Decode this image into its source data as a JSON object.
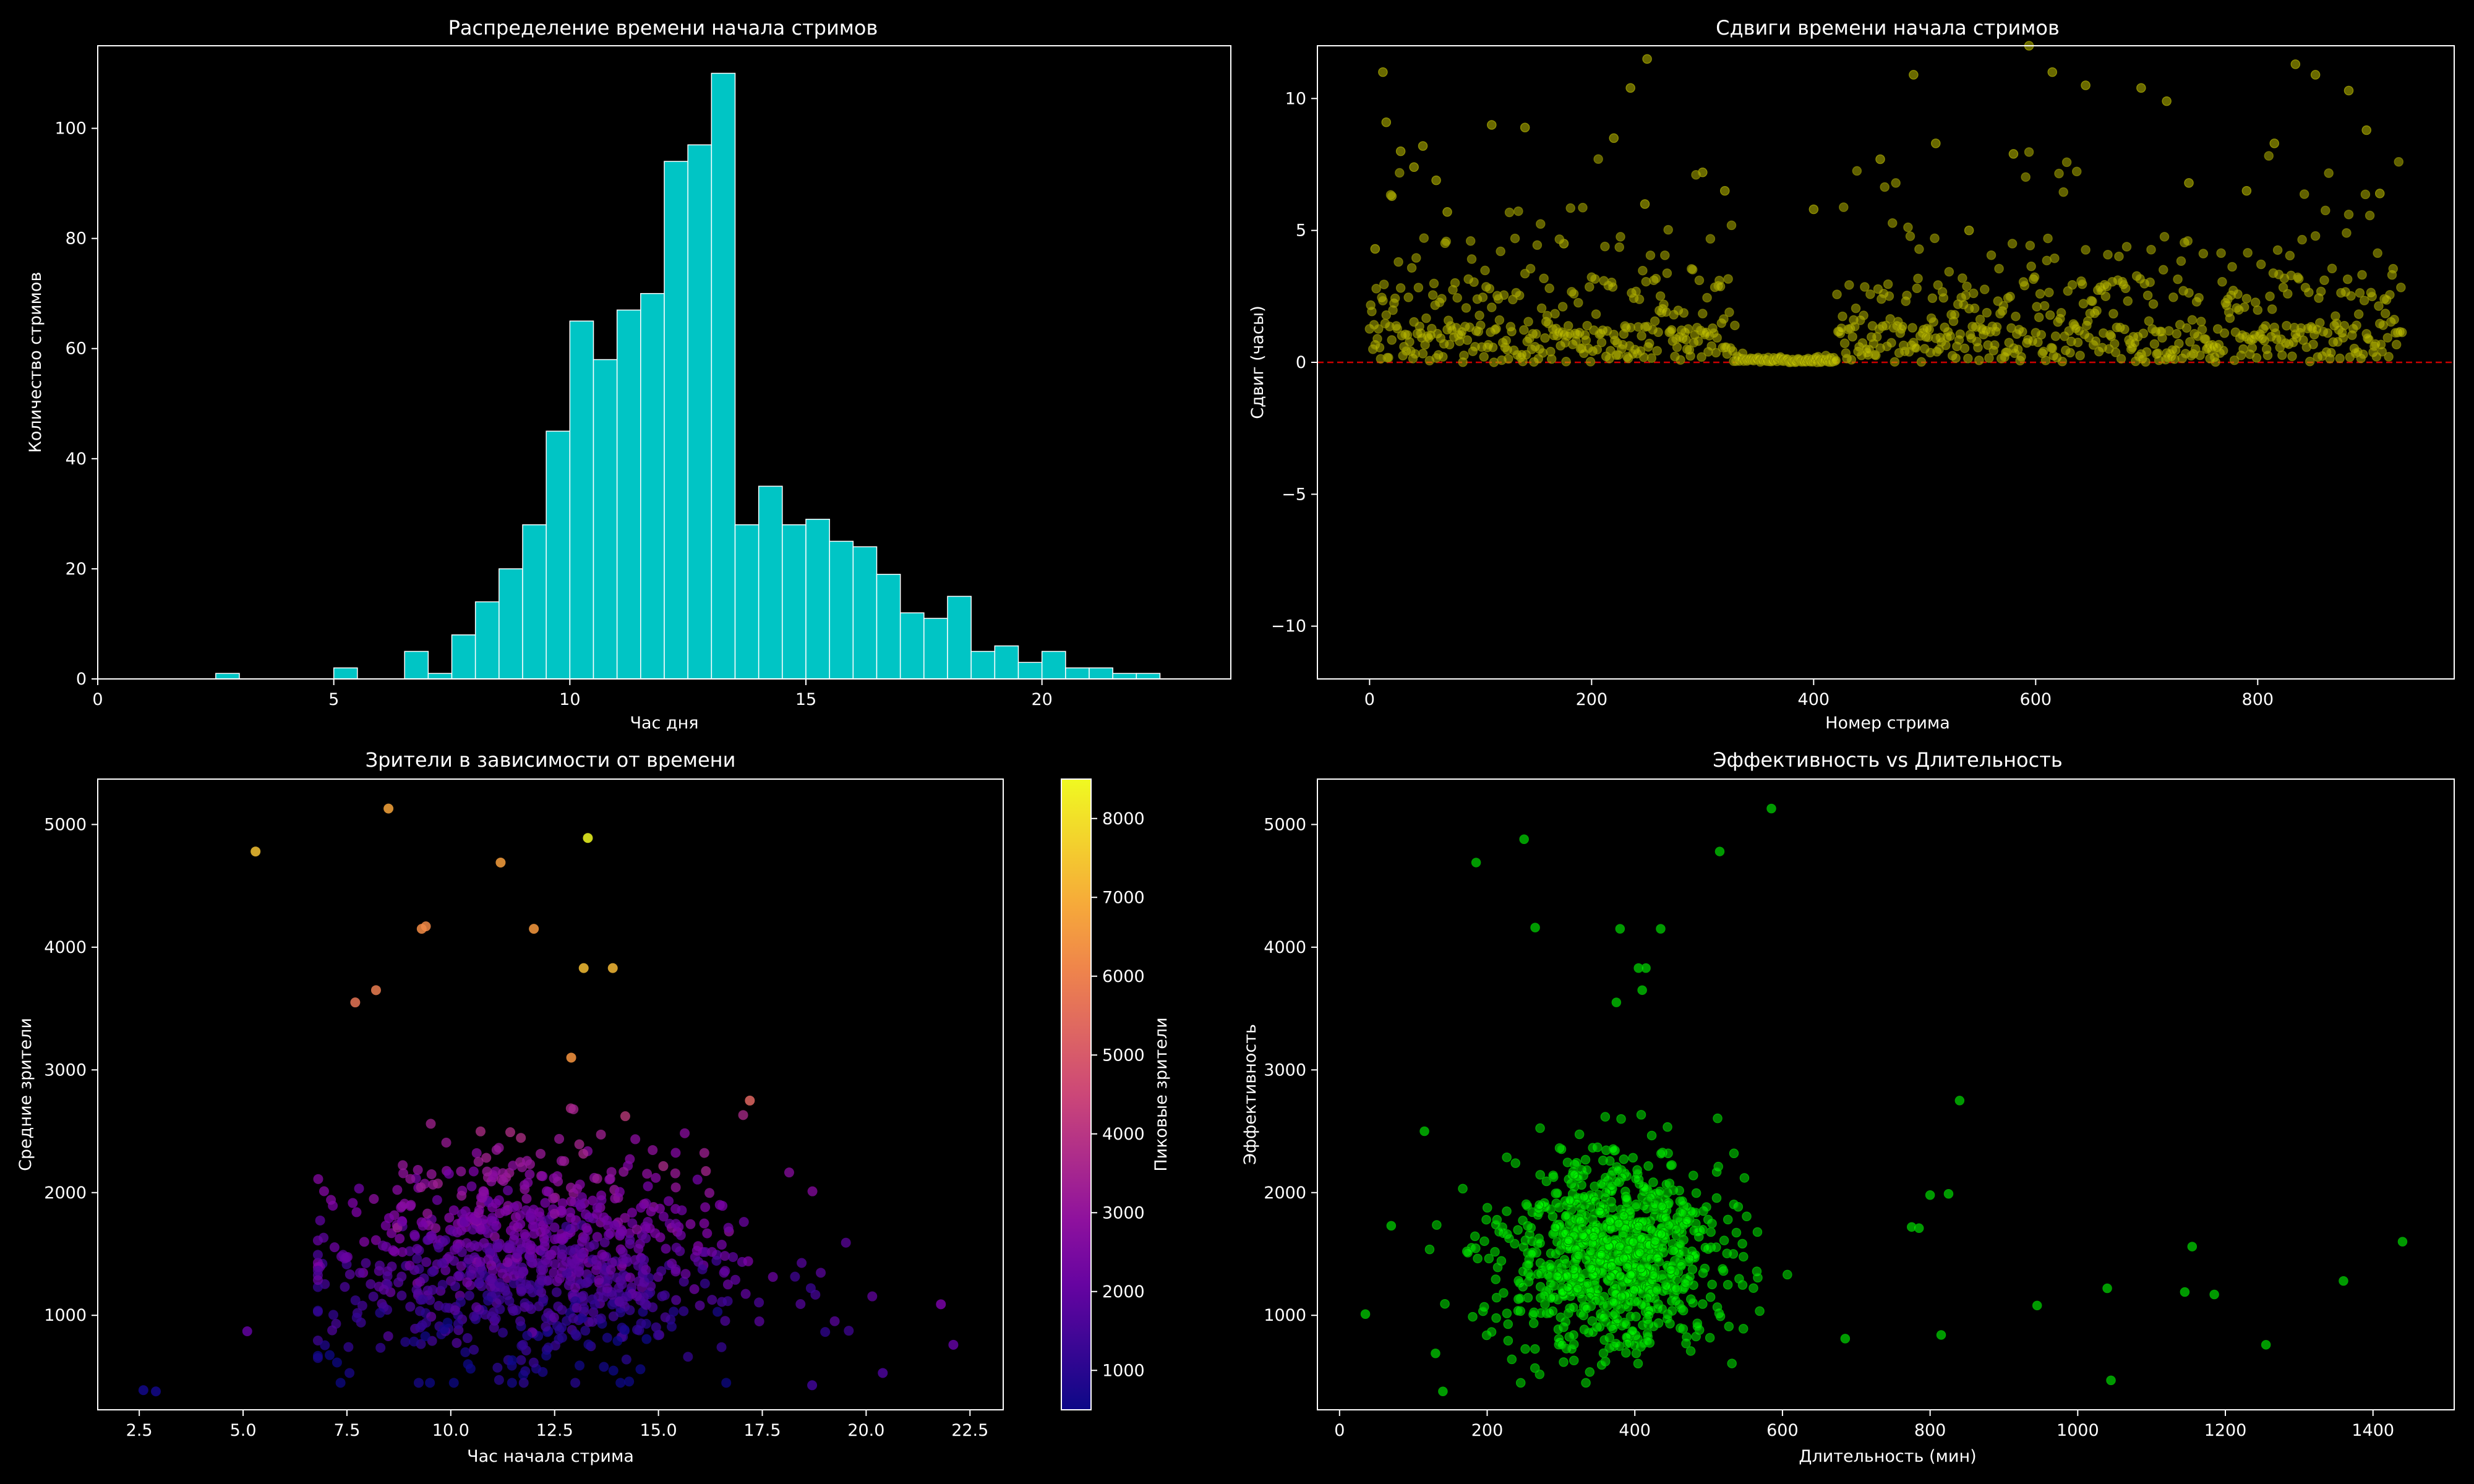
{
  "chart_data": [
    {
      "type": "bar",
      "title": "Распределение времени начала стримов",
      "xlabel": "Час дня",
      "ylabel": "Количество стримов",
      "xlim": [
        0,
        24
      ],
      "ylim": [
        0,
        115
      ],
      "xticks": [
        0,
        5,
        10,
        15,
        20
      ],
      "yticks": [
        0,
        20,
        40,
        60,
        80,
        100
      ],
      "bin_width": 0.5,
      "bar_color": "#00c5c5",
      "edge_color": "#ffffff",
      "bins": [
        {
          "x": 2.5,
          "count": 1
        },
        {
          "x": 5.0,
          "count": 2
        },
        {
          "x": 6.5,
          "count": 5
        },
        {
          "x": 7.0,
          "count": 1
        },
        {
          "x": 7.5,
          "count": 8
        },
        {
          "x": 8.0,
          "count": 14
        },
        {
          "x": 8.5,
          "count": 20
        },
        {
          "x": 9.0,
          "count": 28
        },
        {
          "x": 9.5,
          "count": 45
        },
        {
          "x": 10.0,
          "count": 65
        },
        {
          "x": 10.5,
          "count": 58
        },
        {
          "x": 11.0,
          "count": 67
        },
        {
          "x": 11.5,
          "count": 70
        },
        {
          "x": 12.0,
          "count": 94
        },
        {
          "x": 12.5,
          "count": 97
        },
        {
          "x": 13.0,
          "count": 110
        },
        {
          "x": 13.5,
          "count": 28
        },
        {
          "x": 14.0,
          "count": 35
        },
        {
          "x": 14.5,
          "count": 28
        },
        {
          "x": 15.0,
          "count": 29
        },
        {
          "x": 15.5,
          "count": 25
        },
        {
          "x": 16.0,
          "count": 24
        },
        {
          "x": 16.5,
          "count": 19
        },
        {
          "x": 17.0,
          "count": 12
        },
        {
          "x": 17.5,
          "count": 11
        },
        {
          "x": 18.0,
          "count": 15
        },
        {
          "x": 18.5,
          "count": 5
        },
        {
          "x": 19.0,
          "count": 6
        },
        {
          "x": 19.5,
          "count": 3
        },
        {
          "x": 20.0,
          "count": 5
        },
        {
          "x": 20.5,
          "count": 2
        },
        {
          "x": 21.0,
          "count": 2
        },
        {
          "x": 21.5,
          "count": 1
        },
        {
          "x": 22.0,
          "count": 1
        }
      ]
    },
    {
      "type": "scatter",
      "title": "Сдвиги времени начала стримов",
      "xlabel": "Номер стрима",
      "ylabel": "Сдвиг (часы)",
      "xlim": [
        -47,
        977
      ],
      "ylim": [
        -12,
        12
      ],
      "xticks": [
        0,
        200,
        400,
        600,
        800
      ],
      "yticks": [
        -10,
        -5,
        0,
        5,
        10
      ],
      "point_color": "#bfbf00",
      "reference_line": {
        "y": 0,
        "color": "#cc0000",
        "style": "dashed"
      },
      "n_points": 931,
      "y_pattern": "mostly 0–4 h, sparse outliers up to 12 h, near 0 for streams 330–420",
      "outliers": [
        {
          "x": 5,
          "y": 4.3
        },
        {
          "x": 12,
          "y": 11.0
        },
        {
          "x": 15,
          "y": 9.1
        },
        {
          "x": 20,
          "y": 6.3
        },
        {
          "x": 28,
          "y": 8.0
        },
        {
          "x": 40,
          "y": 7.4
        },
        {
          "x": 48,
          "y": 8.2
        },
        {
          "x": 60,
          "y": 6.9
        },
        {
          "x": 70,
          "y": 5.7
        },
        {
          "x": 110,
          "y": 9.0
        },
        {
          "x": 140,
          "y": 8.9
        },
        {
          "x": 175,
          "y": 4.5
        },
        {
          "x": 220,
          "y": 8.5
        },
        {
          "x": 235,
          "y": 10.4
        },
        {
          "x": 250,
          "y": 11.5
        },
        {
          "x": 248,
          "y": 6.0
        },
        {
          "x": 300,
          "y": 7.2
        },
        {
          "x": 320,
          "y": 6.5
        },
        {
          "x": 400,
          "y": 5.8
        },
        {
          "x": 460,
          "y": 7.7
        },
        {
          "x": 490,
          "y": 10.9
        },
        {
          "x": 510,
          "y": 8.3
        },
        {
          "x": 540,
          "y": 5.0
        },
        {
          "x": 580,
          "y": 7.9
        },
        {
          "x": 594,
          "y": 12.0
        },
        {
          "x": 615,
          "y": 11.0
        },
        {
          "x": 645,
          "y": 10.5
        },
        {
          "x": 695,
          "y": 10.4
        },
        {
          "x": 718,
          "y": 9.9
        },
        {
          "x": 738,
          "y": 6.8
        },
        {
          "x": 790,
          "y": 6.5
        },
        {
          "x": 815,
          "y": 8.3
        },
        {
          "x": 834,
          "y": 11.3
        },
        {
          "x": 852,
          "y": 10.9
        },
        {
          "x": 882,
          "y": 10.3
        },
        {
          "x": 898,
          "y": 8.8
        },
        {
          "x": 910,
          "y": 6.4
        }
      ]
    },
    {
      "type": "scatter",
      "title": "Зрители в зависимости от времени",
      "xlabel": "Час начала стрима",
      "ylabel": "Средние зрители",
      "xlim": [
        1.5,
        23.3
      ],
      "ylim": [
        230,
        5370
      ],
      "xticks": [
        2.5,
        5.0,
        7.5,
        10.0,
        12.5,
        15.0,
        17.5,
        20.0,
        22.5
      ],
      "yticks": [
        1000,
        2000,
        3000,
        4000,
        5000
      ],
      "colormap": "plasma",
      "colorbar": {
        "label": "Пиковые зрители",
        "min": 500,
        "max": 8500,
        "ticks": [
          1000,
          2000,
          3000,
          4000,
          5000,
          6000,
          7000,
          8000
        ]
      },
      "n_points": 931,
      "cluster": {
        "center_x": 12,
        "center_y": 1500
      },
      "outliers": [
        {
          "x": 2.6,
          "y": 390,
          "c": 600
        },
        {
          "x": 5.1,
          "y": 870,
          "c": 2000
        },
        {
          "x": 5.3,
          "y": 4780,
          "c": 7400
        },
        {
          "x": 8.5,
          "y": 5130,
          "c": 6800
        },
        {
          "x": 11.2,
          "y": 4690,
          "c": 6700
        },
        {
          "x": 13.3,
          "y": 4890,
          "c": 8500
        },
        {
          "x": 9.3,
          "y": 4150,
          "c": 6300
        },
        {
          "x": 9.4,
          "y": 4170,
          "c": 6200
        },
        {
          "x": 12.0,
          "y": 4150,
          "c": 6600
        },
        {
          "x": 7.7,
          "y": 3550,
          "c": 5700
        },
        {
          "x": 8.2,
          "y": 3650,
          "c": 5900
        },
        {
          "x": 13.2,
          "y": 3830,
          "c": 7300
        },
        {
          "x": 13.9,
          "y": 3830,
          "c": 7200
        },
        {
          "x": 12.9,
          "y": 3100,
          "c": 6500
        },
        {
          "x": 17.2,
          "y": 2750,
          "c": 5300
        },
        {
          "x": 2.9,
          "y": 380,
          "c": 600
        },
        {
          "x": 22.1,
          "y": 760,
          "c": 2000
        },
        {
          "x": 21.8,
          "y": 1090,
          "c": 2400
        },
        {
          "x": 20.4,
          "y": 530,
          "c": 1600
        },
        {
          "x": 18.7,
          "y": 430,
          "c": 1400
        }
      ]
    },
    {
      "type": "scatter",
      "title": "Эффективность vs Длительность",
      "xlabel": "Длительность (мин)",
      "ylabel": "Эффективность",
      "xlim": [
        -30,
        1510
      ],
      "ylim": [
        230,
        5370
      ],
      "xticks": [
        0,
        200,
        400,
        600,
        800,
        1000,
        1200,
        1400
      ],
      "yticks": [
        1000,
        2000,
        3000,
        4000,
        5000
      ],
      "point_color": "#00ff00",
      "n_points": 931,
      "cluster": {
        "center_x": 370,
        "center_y": 1500
      },
      "outliers": [
        {
          "x": 585,
          "y": 5130
        },
        {
          "x": 250,
          "y": 4880
        },
        {
          "x": 515,
          "y": 4780
        },
        {
          "x": 185,
          "y": 4690
        },
        {
          "x": 265,
          "y": 4160
        },
        {
          "x": 380,
          "y": 4150
        },
        {
          "x": 435,
          "y": 4150
        },
        {
          "x": 405,
          "y": 3830
        },
        {
          "x": 415,
          "y": 3830
        },
        {
          "x": 375,
          "y": 3550
        },
        {
          "x": 410,
          "y": 3650
        },
        {
          "x": 840,
          "y": 2750
        },
        {
          "x": 1440,
          "y": 1600
        },
        {
          "x": 1360,
          "y": 1280
        },
        {
          "x": 1040,
          "y": 1220
        },
        {
          "x": 945,
          "y": 1080
        },
        {
          "x": 1255,
          "y": 760
        },
        {
          "x": 1045,
          "y": 470
        },
        {
          "x": 1155,
          "y": 1560
        },
        {
          "x": 1185,
          "y": 1170
        },
        {
          "x": 1145,
          "y": 1190
        },
        {
          "x": 800,
          "y": 1980
        },
        {
          "x": 825,
          "y": 1990
        },
        {
          "x": 785,
          "y": 1710
        },
        {
          "x": 775,
          "y": 1720
        },
        {
          "x": 815,
          "y": 840
        },
        {
          "x": 685,
          "y": 810
        },
        {
          "x": 35,
          "y": 1010
        },
        {
          "x": 70,
          "y": 1730
        },
        {
          "x": 115,
          "y": 2500
        },
        {
          "x": 130,
          "y": 690
        },
        {
          "x": 140,
          "y": 380
        }
      ]
    }
  ]
}
